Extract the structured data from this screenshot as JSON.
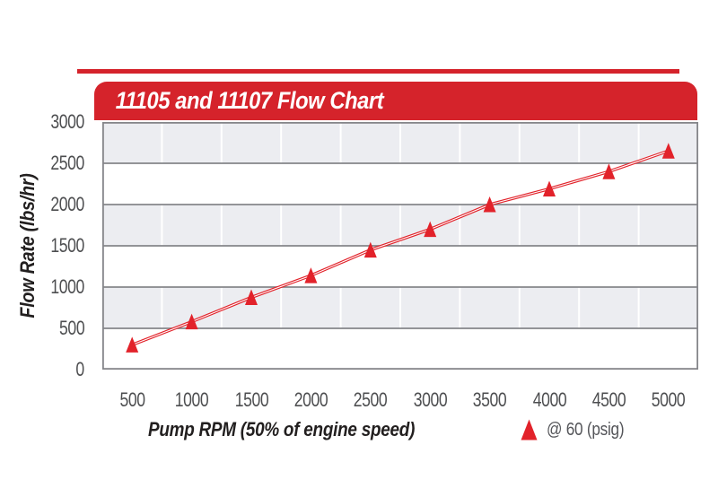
{
  "header": {
    "title": "11105 and 11107 Flow Chart"
  },
  "legend": {
    "label": "@ 60 (psig)",
    "marker": "triangle-icon"
  },
  "axes": {
    "x_ticks": [
      "500",
      "1000",
      "1500",
      "2000",
      "2500",
      "3000",
      "3500",
      "4000",
      "4500",
      "5000"
    ],
    "y_ticks": [
      "3000",
      "2500",
      "2000",
      "1500",
      "1000",
      "500",
      "0"
    ]
  },
  "chart_data": {
    "type": "line",
    "title": "11105 and 11107 Flow Chart",
    "xlabel": "Pump RPM (50% of engine speed)",
    "ylabel": "Flow Rate (lbs/hr)",
    "x": [
      500,
      1000,
      1500,
      2000,
      2500,
      3000,
      3500,
      4000,
      4500,
      5000
    ],
    "series": [
      {
        "name": "@ 60 (psig)",
        "marker": "triangle",
        "values": [
          300,
          580,
          875,
          1140,
          1450,
          1700,
          2000,
          2190,
          2400,
          2650
        ]
      }
    ],
    "ylim": [
      0,
      3000
    ],
    "ytick_interval": 500,
    "xlim_rpm": [
      250,
      5250
    ],
    "grid": "horizontal gray gridlines every 500; white vertical gridlines between categories; alternating gray/white horizontal bands",
    "legend_position": "bottom-right"
  },
  "colors": {
    "banner_red": "#d5232b",
    "rule_red": "#d5232b",
    "series_red": "#e2222a",
    "band_gray": "#ecedf1",
    "grid_gray": "#85868a",
    "tick_text": "#4d4e50",
    "title_text": "#221f1f",
    "legend_text": "#55565a",
    "background": "#ffffff"
  }
}
